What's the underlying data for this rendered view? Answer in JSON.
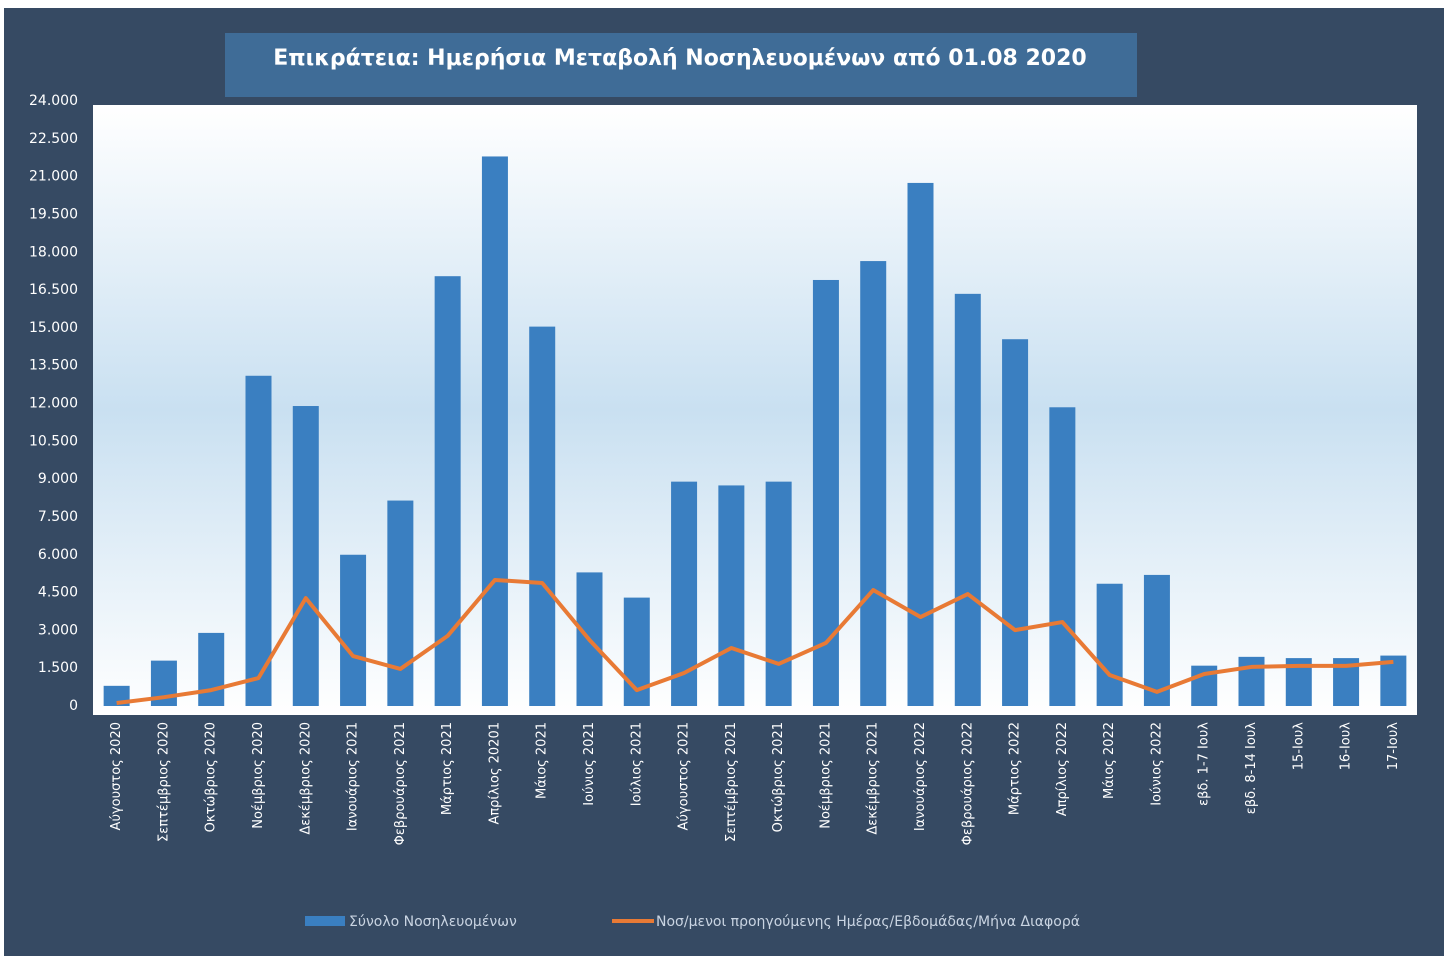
{
  "chart_data": {
    "type": "bar",
    "title": "Επικράτεια: Ημερήσια Μεταβολή Νοσηλευομένων από  01.08 2020",
    "categories": [
      "Αύγουστος 2020",
      "Σεπτέμβριος 2020",
      "Οκτώβριος 2020",
      "Νοέμβριος 2020",
      "Δεκέμβριος 2020",
      "Ιανουάριος 2021",
      "Φεβρουάριος 2021",
      "Μάρτιος 2021",
      "Απρίλιος 20201",
      "Μάιος 2021",
      "Ιούνιος 2021",
      "Ιούλιος 2021",
      "Αύγουστος 2021",
      "Σεπτέμβριος 2021",
      "Οκτώβριος 2021",
      "Νοέμβριος 2021",
      "Δεκέμβριος 2021",
      "Ιανουάριος 2022",
      "Φεβρουάριος 2022",
      "Μάρτιος 2022",
      "Απρίλιος 2022",
      "Μάιος 2022",
      "Ιούνιος 2022",
      "εβδ. 1-7 Ιουλ",
      "εβδ. 8-14 Ιουλ",
      "15-Ιουλ",
      "16-Ιουλ",
      "17-Ιουλ"
    ],
    "series": [
      {
        "name": "Σύνολο Νοσηλευομένων",
        "type": "bar",
        "color": "#3a7fc1",
        "values": [
          800,
          1800,
          2900,
          13100,
          11900,
          6000,
          8150,
          17050,
          21800,
          15050,
          5300,
          4300,
          8900,
          8750,
          8900,
          16900,
          17650,
          20750,
          16350,
          14550,
          11850,
          4850,
          5200,
          1600,
          1950,
          1900,
          1900,
          2000
        ]
      },
      {
        "name": "Νοσ/μενοι προηγούμενης Ημέρας/Εβδομάδας/Μήνα Διαφορά",
        "type": "line",
        "color": "#e87a35",
        "values": [
          120,
          350,
          630,
          1110,
          4280,
          1980,
          1470,
          2780,
          5000,
          4880,
          2620,
          630,
          1310,
          2300,
          1670,
          2500,
          4600,
          3530,
          4440,
          3010,
          3330,
          1230,
          560,
          1270,
          1550,
          1590,
          1590,
          1750
        ]
      }
    ],
    "ylim": [
      0,
      24000
    ],
    "yticks": [
      0,
      {
        "value": 1500,
        "label": "1.500"
      },
      {
        "value": 3000,
        "label": "3.000"
      },
      {
        "value": 4500,
        "label": "4.500"
      },
      {
        "value": 6000,
        "label": "6.000"
      },
      {
        "value": 7500,
        "label": "7.500"
      },
      {
        "value": 9000,
        "label": "9.000"
      },
      {
        "value": 10500,
        "label": "10.500"
      },
      {
        "value": 12000,
        "label": "12.000"
      },
      {
        "value": 13500,
        "label": "13.500"
      },
      {
        "value": 15000,
        "label": "15.000"
      },
      {
        "value": 16500,
        "label": "16.500"
      },
      {
        "value": 18000,
        "label": "18.000"
      },
      {
        "value": 19500,
        "label": "19.500"
      },
      {
        "value": 21000,
        "label": "21.000"
      },
      {
        "value": 22500,
        "label": "22.500"
      },
      {
        "value": 24000,
        "label": "24.000"
      }
    ],
    "grid": false
  }
}
